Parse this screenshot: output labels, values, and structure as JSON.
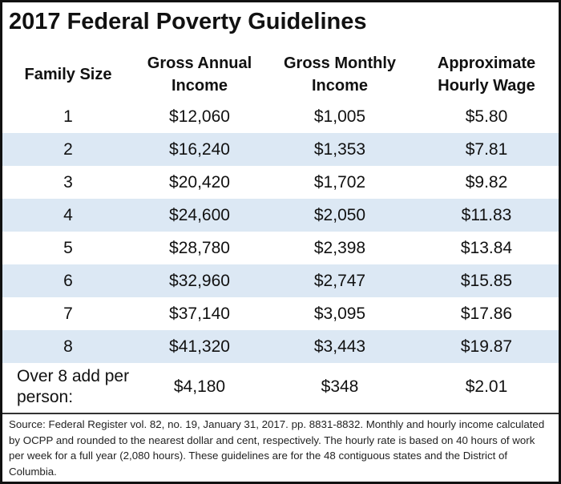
{
  "title": "2017 Federal Poverty Guidelines",
  "table": {
    "header": [
      "Family Size",
      "Gross Annual Income",
      "Gross Monthly Income",
      "Approximate Hourly Wage"
    ],
    "rows": [
      [
        "1",
        "$12,060",
        "$1,005",
        "$5.80"
      ],
      [
        "2",
        "$16,240",
        "$1,353",
        "$7.81"
      ],
      [
        "3",
        "$20,420",
        "$1,702",
        "$9.82"
      ],
      [
        "4",
        "$24,600",
        "$2,050",
        "$11.83"
      ],
      [
        "5",
        "$28,780",
        "$2,398",
        "$13.84"
      ],
      [
        "6",
        "$32,960",
        "$2,747",
        "$15.85"
      ],
      [
        "7",
        "$37,140",
        "$3,095",
        "$17.86"
      ],
      [
        "8",
        "$41,320",
        "$3,443",
        "$19.87"
      ],
      [
        "Over 8 add per person:",
        "$4,180",
        "$348",
        "$2.01"
      ]
    ]
  },
  "source": "Source: Federal Register vol. 82, no. 19, January 31, 2017. pp. 8831-8832. Monthly and hourly income calculated by OCPP and rounded to the nearest dollar and cent, respectively. The hourly rate is based on 40 hours of work per week for a full year (2,080 hours). These guidelines are for the 48 contiguous states and the District of Columbia."
}
